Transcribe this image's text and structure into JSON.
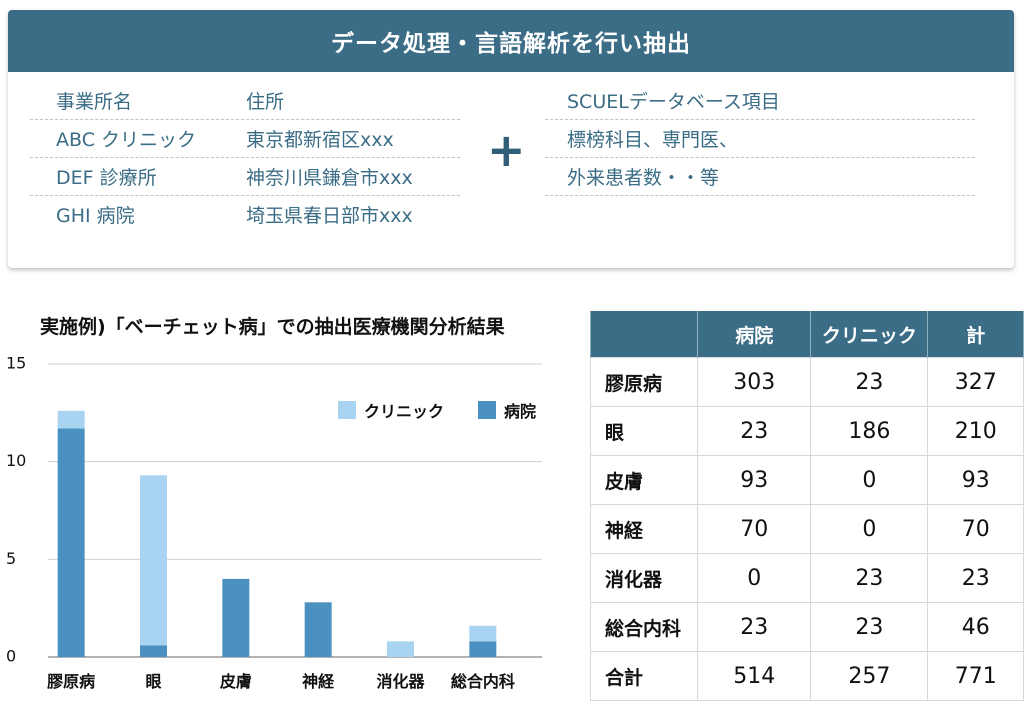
{
  "header": {
    "title": "データ処理・言語解析を行い抽出"
  },
  "clinic_table": {
    "headers": [
      "事業所名",
      "住所"
    ],
    "rows": [
      [
        "ABC クリニック",
        "東京都新宿区xxx"
      ],
      [
        "DEF 診療所",
        "神奈川県鎌倉市xxx"
      ],
      [
        "GHI 病院",
        "埼玉県春日部市xxx"
      ]
    ]
  },
  "plus_symbol": "+",
  "scuel_table": {
    "rows": [
      "SCUELデータベース項目",
      "標榜科目、専門医、",
      "外来患者数・・等"
    ]
  },
  "colors": {
    "header_bg": "#3b6d86",
    "hospital": "#4a90c0",
    "clinic": "#a8d4f2"
  },
  "chart_data": {
    "type": "bar",
    "stacked": true,
    "title": "実施例)「ベーチェット病」での抽出医療機関分析結果",
    "categories": [
      "膠原病",
      "眼",
      "皮膚",
      "神経",
      "消化器",
      "総合内科"
    ],
    "series": [
      {
        "name": "病院",
        "values": [
          11.7,
          0.6,
          4.0,
          2.8,
          0,
          0.8
        ]
      },
      {
        "name": "クリニック",
        "values": [
          0.9,
          8.7,
          0,
          0,
          0.8,
          0.8
        ]
      }
    ],
    "legend": [
      "クリニック",
      "病院"
    ],
    "ylim": [
      0,
      15
    ],
    "yticks": [
      "15",
      "10",
      "5",
      "0"
    ],
    "grid": true
  },
  "result_table": {
    "headers": [
      "",
      "病院",
      "クリニック",
      "計"
    ],
    "rows": [
      [
        "膠原病",
        "303",
        "23",
        "327"
      ],
      [
        "眼",
        "23",
        "186",
        "210"
      ],
      [
        "皮膚",
        "93",
        "0",
        "93"
      ],
      [
        "神経",
        "70",
        "0",
        "70"
      ],
      [
        "消化器",
        "0",
        "23",
        "23"
      ],
      [
        "総合内科",
        "23",
        "23",
        "46"
      ],
      [
        "合計",
        "514",
        "257",
        "771"
      ]
    ]
  }
}
